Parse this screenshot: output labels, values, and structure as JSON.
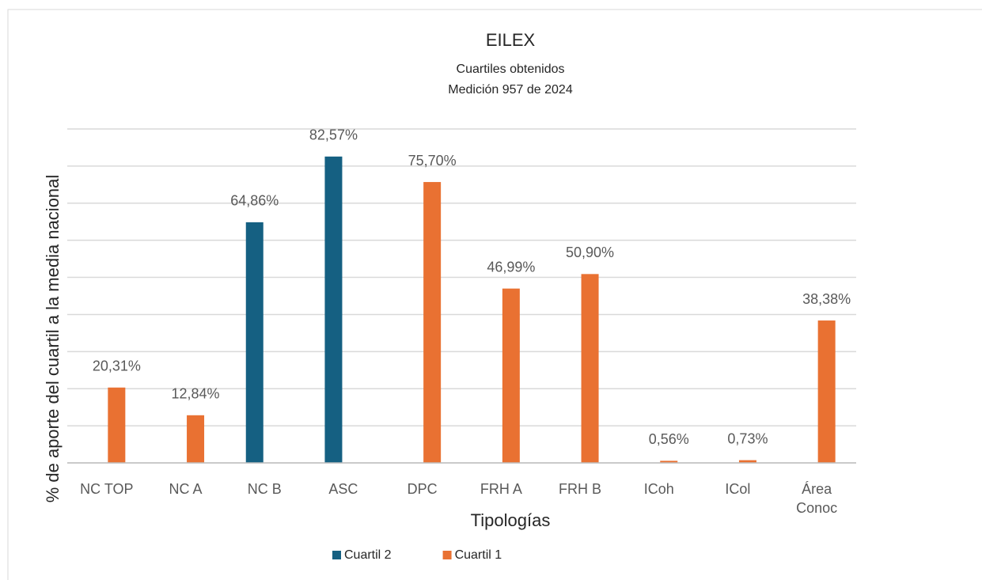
{
  "chart_data": {
    "type": "bar",
    "title": "EILEX",
    "subtitle": [
      "Cuartiles obtenidos",
      "Medición 957 de 2024"
    ],
    "x_label": "Tipologías",
    "y_label": "% de aporte del cuartil a la media nacional",
    "categories": [
      "NC TOP",
      "NC A",
      "NC B",
      "ASC",
      "DPC",
      "FRH A",
      "FRH B",
      "ICoh",
      "ICol",
      "Área Conoc"
    ],
    "series": [
      {
        "name": "Cuartil 2",
        "color": "#156082",
        "values": [
          null,
          null,
          64.86,
          82.57,
          null,
          null,
          null,
          null,
          null,
          null
        ],
        "value_labels": [
          null,
          null,
          "64,86%",
          "82,57%",
          null,
          null,
          null,
          null,
          null,
          null
        ]
      },
      {
        "name": "Cuartil 1",
        "color": "#e97132",
        "values": [
          20.31,
          12.84,
          null,
          null,
          75.7,
          46.99,
          50.9,
          0.56,
          0.73,
          38.38
        ],
        "value_labels": [
          "20,31%",
          "12,84%",
          null,
          null,
          "75,70%",
          "46,99%",
          "50,90%",
          "0,56%",
          "0,73%",
          "38,38%"
        ]
      }
    ],
    "ylim": [
      0,
      90
    ],
    "yticks": [
      0,
      10,
      20,
      30,
      40,
      50,
      60,
      70,
      80,
      90
    ],
    "grid": true,
    "legend": "bottom"
  }
}
